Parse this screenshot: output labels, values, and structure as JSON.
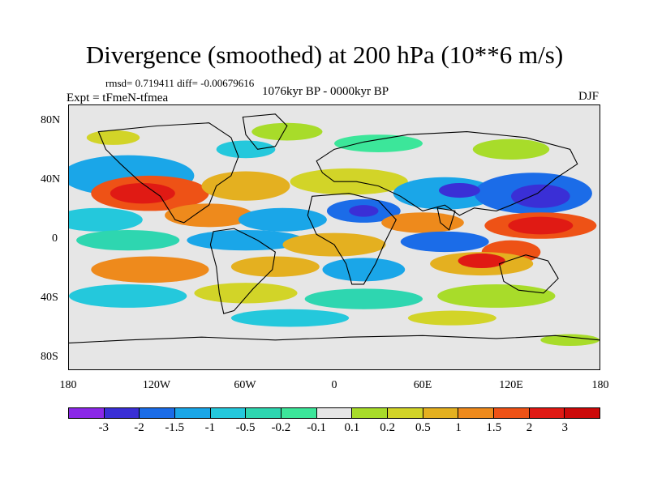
{
  "title": "Divergence (smoothed) at 200 hPa (10**6 m/s)",
  "stats": "rmsd= 0.719411 diff= -0.00679616",
  "experiment": "Expt = tFmeN-tfmea",
  "period": "1076kyr BP - 0000kyr BP",
  "season": "DJF",
  "map": {
    "projection": "cylindrical equidistant",
    "lon_range": [
      -180,
      180
    ],
    "lat_range": [
      -90,
      90
    ],
    "background_color": "#e6e6e6",
    "y_ticks": [
      "80N",
      "40N",
      "0",
      "40S",
      "80S"
    ],
    "x_ticks": [
      "180",
      "120W",
      "60W",
      "0",
      "60E",
      "120E",
      "180"
    ]
  },
  "colorbar": {
    "labels": [
      "-3",
      "-2",
      "-1.5",
      "-1",
      "-0.5",
      "-0.2",
      "-0.1",
      "0.1",
      "0.2",
      "0.5",
      "1",
      "1.5",
      "2",
      "3"
    ],
    "colors": [
      "#8b28e8",
      "#3a2fd6",
      "#1b6ce8",
      "#1aa6e8",
      "#24c8dc",
      "#2ed6b0",
      "#3ce69a",
      "#e6e6e6",
      "#a8dc2a",
      "#d2d428",
      "#e4b020",
      "#ee8a1c",
      "#ee5216",
      "#e01a14",
      "#cc0a0a"
    ]
  }
}
